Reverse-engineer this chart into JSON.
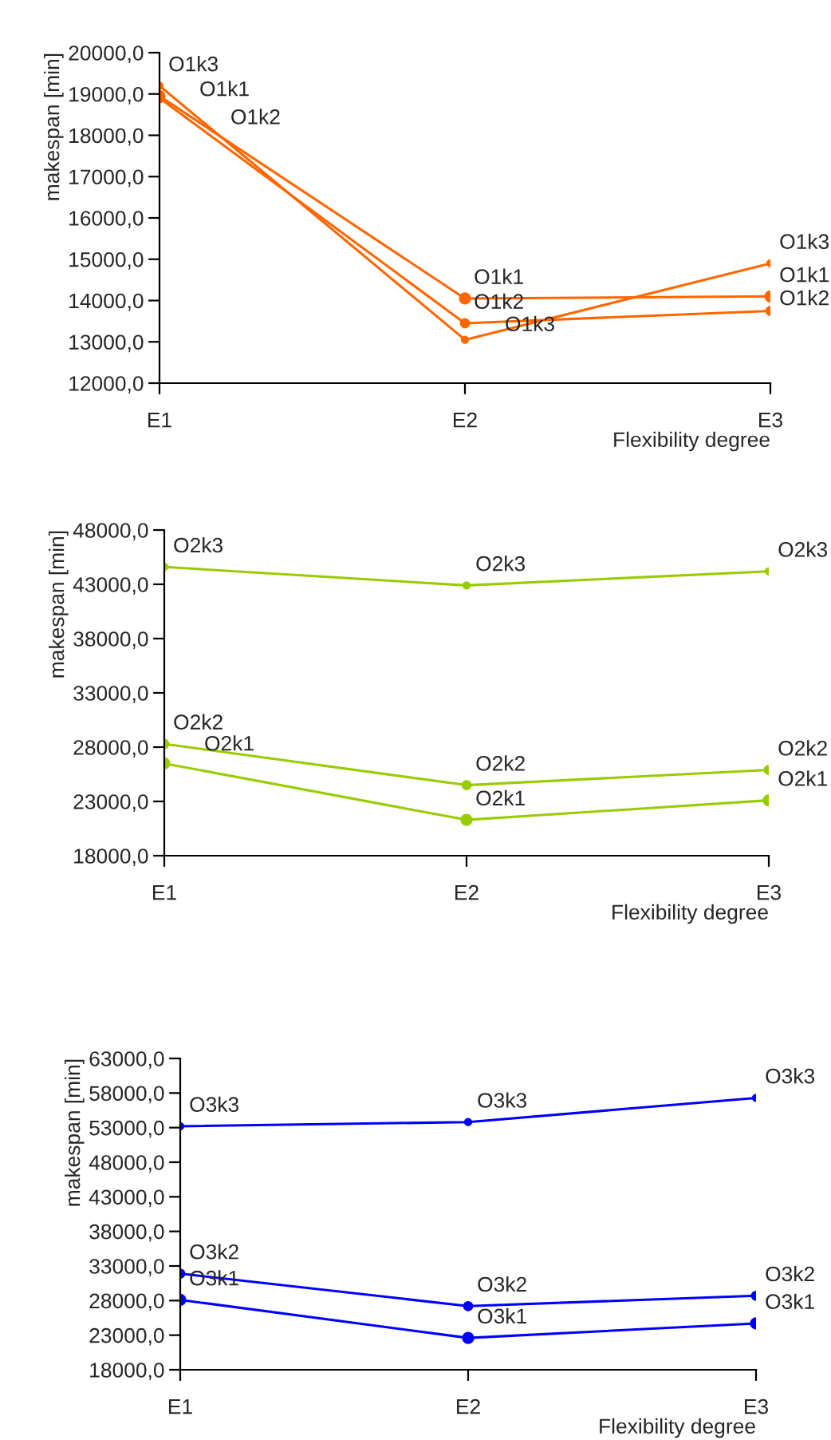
{
  "chart_data": [
    {
      "type": "line",
      "xlabel": "Flexibility degree",
      "ylabel": "makespan [min]",
      "categories": [
        "E1",
        "E2",
        "E3"
      ],
      "ylim": [
        12000,
        20000
      ],
      "yticks": [
        {
          "value": 12000,
          "label": "12000,0"
        },
        {
          "value": 13000,
          "label": "13000,0"
        },
        {
          "value": 14000,
          "label": "14000,0"
        },
        {
          "value": 15000,
          "label": "15000,0"
        },
        {
          "value": 16000,
          "label": "16000,0"
        },
        {
          "value": 17000,
          "label": "17000,0"
        },
        {
          "value": 18000,
          "label": "18000,0"
        },
        {
          "value": 19000,
          "label": "19000,0"
        },
        {
          "value": 20000,
          "label": "20000,0"
        }
      ],
      "grid": false,
      "legend": false,
      "marker": "circle",
      "line_style": "solid",
      "series": [
        {
          "name": "O1k1",
          "color": "#ff6600",
          "values": [
            18950,
            14050,
            14100
          ]
        },
        {
          "name": "O1k2",
          "color": "#ff6600",
          "values": [
            18900,
            13450,
            13750
          ]
        },
        {
          "name": "O1k3",
          "color": "#ff6600",
          "values": [
            19200,
            13050,
            14900
          ]
        }
      ]
    },
    {
      "type": "line",
      "xlabel": "Flexibility degree",
      "ylabel": "makespan [min]",
      "categories": [
        "E1",
        "E2",
        "E3"
      ],
      "ylim": [
        18000,
        48000
      ],
      "yticks": [
        {
          "value": 18000,
          "label": "18000,0"
        },
        {
          "value": 23000,
          "label": "23000,0"
        },
        {
          "value": 28000,
          "label": "28000,0"
        },
        {
          "value": 33000,
          "label": "33000,0"
        },
        {
          "value": 38000,
          "label": "38000,0"
        },
        {
          "value": 43000,
          "label": "43000,0"
        },
        {
          "value": 48000,
          "label": "48000,0"
        }
      ],
      "grid": false,
      "legend": false,
      "marker": "circle",
      "line_style": "solid",
      "series": [
        {
          "name": "O2k1",
          "color": "#99cc00",
          "values": [
            26500,
            21300,
            23100
          ]
        },
        {
          "name": "O2k2",
          "color": "#99cc00",
          "values": [
            28300,
            24500,
            25900
          ]
        },
        {
          "name": "O2k3",
          "color": "#99cc00",
          "values": [
            44600,
            42900,
            44200
          ]
        }
      ]
    },
    {
      "type": "line",
      "xlabel": "Flexibility degree",
      "ylabel": "makespan [min]",
      "categories": [
        "E1",
        "E2",
        "E3"
      ],
      "ylim": [
        18000,
        63000
      ],
      "yticks": [
        {
          "value": 18000,
          "label": "18000,0"
        },
        {
          "value": 23000,
          "label": "23000,0"
        },
        {
          "value": 28000,
          "label": "28000,0"
        },
        {
          "value": 33000,
          "label": "33000,0"
        },
        {
          "value": 38000,
          "label": "38000,0"
        },
        {
          "value": 43000,
          "label": "43000,0"
        },
        {
          "value": 48000,
          "label": "48000,0"
        },
        {
          "value": 53000,
          "label": "53000,0"
        },
        {
          "value": 58000,
          "label": "58000,0"
        },
        {
          "value": 63000,
          "label": "63000,0"
        }
      ],
      "grid": false,
      "legend": false,
      "marker": "circle",
      "line_style": "solid",
      "series": [
        {
          "name": "O3k1",
          "color": "#0000ff",
          "values": [
            28100,
            22600,
            24700
          ]
        },
        {
          "name": "O3k2",
          "color": "#0000ff",
          "values": [
            31900,
            27200,
            28700
          ]
        },
        {
          "name": "O3k3",
          "color": "#0000ff",
          "values": [
            53200,
            53800,
            57300
          ]
        }
      ]
    }
  ]
}
